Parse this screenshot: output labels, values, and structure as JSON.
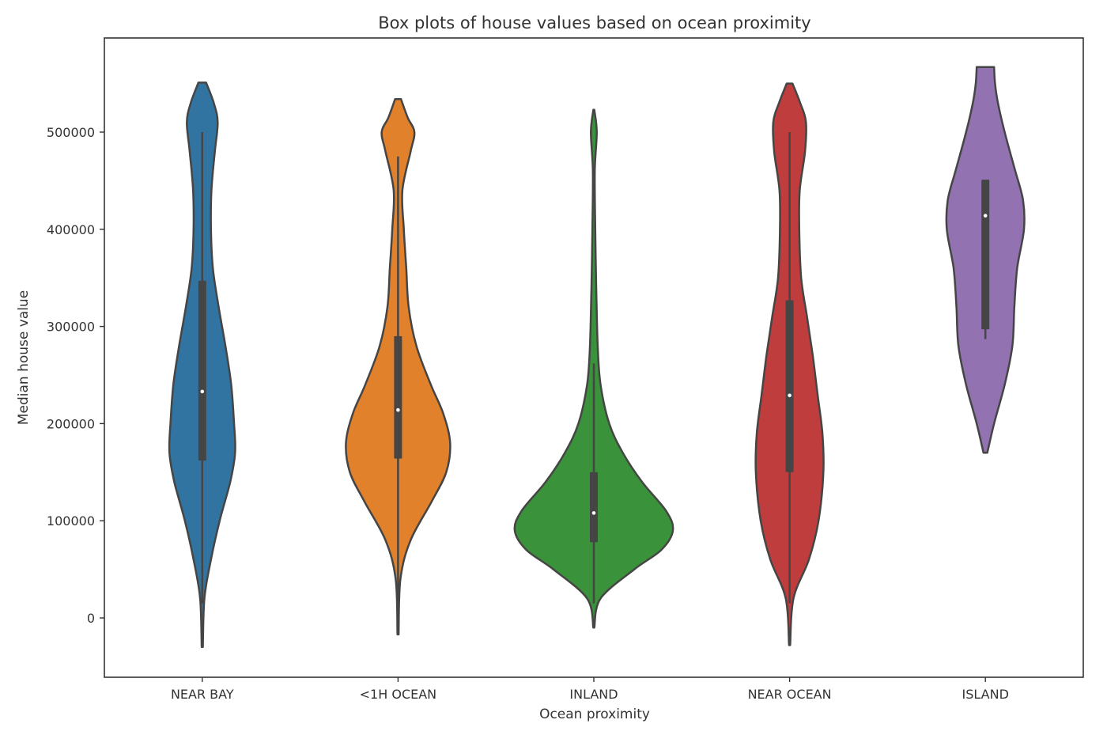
{
  "chart_data": {
    "type": "violin",
    "title": "Box plots of house values based on ocean proximity",
    "xlabel": "Ocean proximity",
    "ylabel": "Median house value",
    "ylim": [
      -60000,
      600000
    ],
    "yticks": [
      0,
      100000,
      200000,
      300000,
      400000,
      500000
    ],
    "ytick_labels": [
      "0",
      "100000",
      "200000",
      "300000",
      "400000",
      "500000"
    ],
    "grid": false,
    "legend": "none",
    "categories": [
      "NEAR BAY",
      "<1H OCEAN",
      "INLAND",
      "NEAR OCEAN",
      "ISLAND"
    ],
    "colors": [
      "#3274a1",
      "#e1812c",
      "#3a923a",
      "#c03d3e",
      "#9372b2"
    ],
    "series": [
      {
        "category": "NEAR BAY",
        "median": 233000,
        "q1": 162000,
        "q3": 347000,
        "whisker_low": 15000,
        "whisker_high": 500000,
        "range": [
          -30000,
          551000
        ],
        "density": [
          [
            -30000,
            0.6
          ],
          [
            20000,
            2.2
          ],
          [
            60000,
            9
          ],
          [
            100000,
            18
          ],
          [
            140000,
            29
          ],
          [
            170000,
            34
          ],
          [
            200000,
            33
          ],
          [
            240000,
            30
          ],
          [
            280000,
            24
          ],
          [
            320000,
            17
          ],
          [
            360000,
            11
          ],
          [
            400000,
            9
          ],
          [
            440000,
            9.5
          ],
          [
            480000,
            13
          ],
          [
            510000,
            16
          ],
          [
            530000,
            12
          ],
          [
            551000,
            4
          ]
        ]
      },
      {
        "category": "<1H OCEAN",
        "median": 214000,
        "q1": 164000,
        "q3": 290000,
        "whisker_low": 17000,
        "whisker_high": 475000,
        "range": [
          -17000,
          534000
        ],
        "density": [
          [
            -17000,
            0.6
          ],
          [
            40000,
            2.5
          ],
          [
            80000,
            13
          ],
          [
            120000,
            35
          ],
          [
            150000,
            50
          ],
          [
            180000,
            54
          ],
          [
            210000,
            47
          ],
          [
            240000,
            34
          ],
          [
            280000,
            19
          ],
          [
            320000,
            11
          ],
          [
            360000,
            8.5
          ],
          [
            400000,
            6
          ],
          [
            440000,
            4.5
          ],
          [
            480000,
            13
          ],
          [
            500000,
            17
          ],
          [
            515000,
            10
          ],
          [
            534000,
            3
          ]
        ]
      },
      {
        "category": "INLAND",
        "median": 108000,
        "q1": 78000,
        "q3": 150000,
        "whisker_low": 15000,
        "whisker_high": 262000,
        "range": [
          -10000,
          523000
        ],
        "density": [
          [
            -10000,
            0.5
          ],
          [
            20000,
            7
          ],
          [
            50000,
            42
          ],
          [
            70000,
            70
          ],
          [
            90000,
            82
          ],
          [
            110000,
            75
          ],
          [
            140000,
            50
          ],
          [
            170000,
            30
          ],
          [
            200000,
            16
          ],
          [
            240000,
            7
          ],
          [
            280000,
            4
          ],
          [
            340000,
            2.5
          ],
          [
            400000,
            1.5
          ],
          [
            460000,
            1
          ],
          [
            500000,
            3
          ],
          [
            523000,
            0.5
          ]
        ]
      },
      {
        "category": "NEAR OCEAN",
        "median": 229000,
        "q1": 150000,
        "q3": 327000,
        "whisker_low": 15000,
        "whisker_high": 500000,
        "range": [
          -28000,
          550000
        ],
        "density": [
          [
            -28000,
            0.6
          ],
          [
            20000,
            4
          ],
          [
            60000,
            20
          ],
          [
            100000,
            30
          ],
          [
            150000,
            35
          ],
          [
            190000,
            34
          ],
          [
            230000,
            29
          ],
          [
            270000,
            24
          ],
          [
            310000,
            18
          ],
          [
            350000,
            12
          ],
          [
            400000,
            10
          ],
          [
            440000,
            10.5
          ],
          [
            480000,
            16
          ],
          [
            510000,
            17
          ],
          [
            530000,
            11
          ],
          [
            550000,
            3
          ]
        ]
      },
      {
        "category": "ISLAND",
        "median": 414000,
        "q1": 297000,
        "q3": 451000,
        "whisker_low": 287000,
        "whisker_high": 451000,
        "range": [
          170000,
          567000
        ],
        "density": [
          [
            170000,
            2
          ],
          [
            200000,
            9
          ],
          [
            240000,
            20
          ],
          [
            280000,
            28
          ],
          [
            320000,
            30
          ],
          [
            360000,
            33
          ],
          [
            400000,
            40
          ],
          [
            430000,
            39
          ],
          [
            460000,
            31
          ],
          [
            500000,
            20
          ],
          [
            530000,
            13
          ],
          [
            550000,
            10
          ],
          [
            567000,
            9
          ]
        ]
      }
    ]
  }
}
